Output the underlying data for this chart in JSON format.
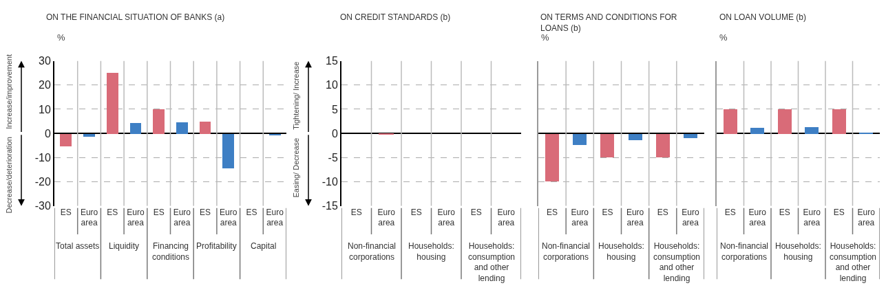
{
  "chart_data": [
    {
      "type": "bar",
      "title": "ON THE FINANCIAL SITUATION OF BANKS (a)",
      "ylabel": "%",
      "categories": [
        "ES",
        "Euro area",
        "ES",
        "Euro area",
        "ES",
        "Euro area",
        "ES",
        "Euro area",
        "ES",
        "Euro area"
      ],
      "values": [
        -5.3,
        -1.2,
        25.1,
        4.4,
        10,
        4.8,
        5,
        -14.3,
        0,
        -0.8
      ],
      "colors": [
        "#d96b78",
        "#3e7fc4",
        "#d96b78",
        "#3e7fc4",
        "#d96b78",
        "#3e7fc4",
        "#d96b78",
        "#3e7fc4",
        "#d96b78",
        "#3e7fc4"
      ],
      "ylim": [
        -30,
        30
      ],
      "yticks": [
        -30,
        -20,
        -10,
        0,
        10,
        20,
        30
      ],
      "grid": "y",
      "annotations": [
        "Total assets",
        "Liquidity",
        "Financing conditions",
        "Profitability",
        "Capital",
        "Increase/improvement",
        "Decrease/deterioration"
      ]
    },
    {
      "type": "bar",
      "title": "ON CREDIT STANDARDS (b)",
      "categories": [
        "ES",
        "Euro area",
        "ES",
        "Euro area",
        "ES",
        "Euro area"
      ],
      "values": [
        0,
        -0.1,
        0,
        0,
        0,
        0
      ],
      "colors": [
        "#d96b78",
        "#d96b78",
        "#d96b78",
        "#3e7fc4",
        "#d96b78",
        "#3e7fc4"
      ],
      "ylim": [
        -15,
        15
      ],
      "yticks": [
        -15,
        -10,
        -5,
        0,
        5,
        10,
        15
      ],
      "grid": "y",
      "annotations": [
        "Non-financial corporations",
        "Households: housing",
        "Households: consumption and other lending",
        "Tightening/ Increase",
        "Easing/ Decrease"
      ]
    },
    {
      "type": "bar",
      "title": "ON TERMS AND CONDITIONS FOR LOANS (b)",
      "ylabel": "%",
      "categories": [
        "ES",
        "Euro area",
        "ES",
        "Euro area",
        "ES",
        "Euro area"
      ],
      "values": [
        -9.8,
        -2.3,
        -4.9,
        -1.4,
        -4.9,
        -0.9
      ],
      "colors": [
        "#d96b78",
        "#3e7fc4",
        "#d96b78",
        "#3e7fc4",
        "#d96b78",
        "#3e7fc4"
      ],
      "ylim": [
        -15,
        15
      ],
      "yticks": [
        -15,
        -10,
        -5,
        0,
        5,
        10,
        15
      ],
      "tick_labels": "x",
      "grid": "y",
      "annotations": [
        "Non-financial corporations",
        "Households: housing",
        "Households: consumption and other lending"
      ]
    },
    {
      "type": "bar",
      "title": "ON LOAN VOLUME (b)",
      "ylabel": "%",
      "categories": [
        "ES",
        "Euro area",
        "ES",
        "Euro area",
        "ES",
        "Euro area"
      ],
      "values": [
        5,
        1.2,
        5,
        1.4,
        5,
        0.2
      ],
      "colors": [
        "#d96b78",
        "#3e7fc4",
        "#d96b78",
        "#3e7fc4",
        "#d96b78",
        "#3e7fc4"
      ],
      "ylim": [
        -15,
        15
      ],
      "yticks": [
        -15,
        -10,
        -5,
        0,
        5,
        10,
        15
      ],
      "tick_labels": "x",
      "grid": "y",
      "annotations": [
        "Non-financial corporations",
        "Households: housing",
        "Households: consumption and other lending"
      ]
    }
  ]
}
